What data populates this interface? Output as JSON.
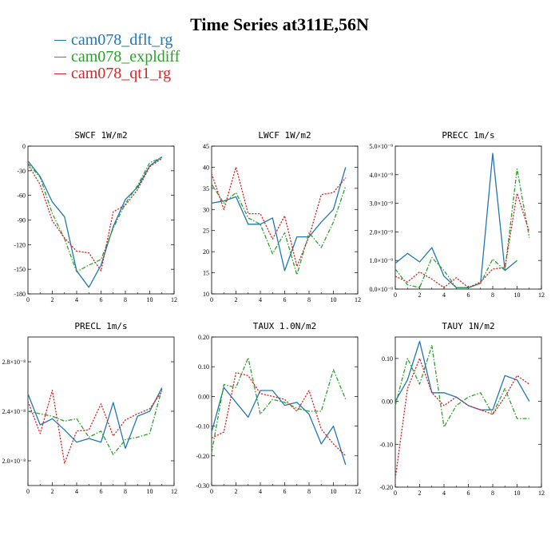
{
  "figure": {
    "title": "Time Series at311E,56N"
  },
  "legend": [
    {
      "name": "cam078_dflt_rg",
      "color": "#1f77b4",
      "dash": "solid"
    },
    {
      "name": "cam078_expldiff",
      "color": "#2ca02c",
      "dash": "dashdot"
    },
    {
      "name": "cam078_qt1_rg",
      "color": "#d62728",
      "dash": "dotted"
    }
  ],
  "chart_data": [
    {
      "type": "line",
      "title": "SWCF   1W/m2",
      "x": [
        0,
        1,
        2,
        3,
        4,
        5,
        6,
        7,
        8,
        9,
        10,
        11
      ],
      "xlim": [
        0,
        12
      ],
      "xticks": [
        0,
        2,
        4,
        6,
        8,
        10,
        12
      ],
      "xtick_labels": [
        "0",
        "2",
        "4",
        "6",
        "8",
        "10",
        "12"
      ],
      "ylim": [
        -180,
        0
      ],
      "yticks": [
        -180,
        -150,
        -120,
        -90,
        -60,
        -30,
        0
      ],
      "ytick_labels": [
        "-180",
        "-150",
        "-120",
        "-90",
        "-60",
        "-30",
        "0"
      ],
      "series": [
        {
          "name": "cam078_dflt_rg",
          "values": [
            -18,
            -37,
            -68,
            -86,
            -152,
            -172,
            -145,
            -98,
            -65,
            -50,
            -24,
            -13
          ]
        },
        {
          "name": "cam078_expldiff",
          "values": [
            -21,
            -38,
            -82,
            -113,
            -153,
            -145,
            -138,
            -100,
            -70,
            -48,
            -20,
            -14
          ]
        },
        {
          "name": "cam078_qt1_rg",
          "values": [
            -22,
            -47,
            -91,
            -112,
            -128,
            -130,
            -152,
            -80,
            -72,
            -53,
            -25,
            -15
          ]
        }
      ]
    },
    {
      "type": "line",
      "title": "LWCF   1W/m2",
      "x": [
        0,
        1,
        2,
        3,
        4,
        5,
        6,
        7,
        8,
        9,
        10,
        11
      ],
      "xlim": [
        0,
        12
      ],
      "xticks": [
        0,
        2,
        4,
        6,
        8,
        10,
        12
      ],
      "xtick_labels": [
        "0",
        "2",
        "4",
        "6",
        "8",
        "10",
        "12"
      ],
      "ylim": [
        10,
        45
      ],
      "yticks": [
        10,
        15,
        20,
        25,
        30,
        35,
        40,
        45
      ],
      "ytick_labels": [
        "10",
        "15",
        "20",
        "25",
        "30",
        "35",
        "40",
        "45"
      ],
      "series": [
        {
          "name": "cam078_dflt_rg",
          "values": [
            31.5,
            32,
            33,
            26.5,
            26.5,
            28,
            15.5,
            23.5,
            23.5,
            27,
            30,
            40
          ]
        },
        {
          "name": "cam078_expldiff",
          "values": [
            36,
            31.5,
            34,
            28,
            26.5,
            19.5,
            24.5,
            14.5,
            24.5,
            21,
            27,
            35.5
          ]
        },
        {
          "name": "cam078_qt1_rg",
          "values": [
            38.5,
            30,
            40,
            29,
            29,
            23,
            28.5,
            16.5,
            23.5,
            33.5,
            34,
            37.5
          ]
        }
      ]
    },
    {
      "type": "line",
      "title": "PRECC   1m/s",
      "x": [
        0,
        1,
        2,
        3,
        4,
        5,
        6,
        7,
        8,
        9,
        10,
        11
      ],
      "xlim": [
        0,
        12
      ],
      "xticks": [
        0,
        2,
        4,
        6,
        8,
        10,
        12
      ],
      "xtick_labels": [
        "0",
        "2",
        "4",
        "6",
        "8",
        "10",
        "12"
      ],
      "ylim": [
        0,
        5
      ],
      "yticks": [
        0,
        1,
        2,
        3,
        4,
        5
      ],
      "ytick_labels": [
        "0.0×10⁻⁹",
        "1.0×10⁻⁹",
        "2.0×10⁻⁹",
        "3.0×10⁻⁹",
        "4.0×10⁻⁹",
        "5.0×10⁻⁹"
      ],
      "series": [
        {
          "name": "cam078_dflt_rg",
          "values": [
            0.9,
            1.25,
            0.95,
            1.45,
            0.45,
            0.05,
            0.05,
            0.2,
            4.75,
            0.65,
            1.0,
            null
          ]
        },
        {
          "name": "cam078_expldiff",
          "values": [
            0.7,
            0.15,
            0.05,
            1.1,
            0.65,
            0.05,
            0.05,
            0.2,
            1.05,
            0.65,
            4.2,
            1.8
          ]
        },
        {
          "name": "cam078_qt1_rg",
          "values": [
            0.45,
            0.25,
            0.6,
            0.35,
            0.05,
            0.4,
            0.05,
            0.25,
            0.7,
            0.75,
            3.35,
            2.0
          ]
        }
      ]
    },
    {
      "type": "line",
      "title": "PRECL   1m/s",
      "x": [
        0,
        1,
        2,
        3,
        4,
        5,
        6,
        7,
        8,
        9,
        10,
        11
      ],
      "xlim": [
        0,
        12
      ],
      "xticks": [
        0,
        2,
        4,
        6,
        8,
        10,
        12
      ],
      "xtick_labels": [
        "0",
        "2",
        "4",
        "6",
        "8",
        "10",
        "12"
      ],
      "ylim": [
        1.8,
        3.0
      ],
      "yticks": [
        2.0,
        2.4,
        2.8
      ],
      "ytick_labels": [
        "2.0×10⁻⁸",
        "2.4×10⁻⁸",
        "2.8×10⁻⁸"
      ],
      "series": [
        {
          "name": "cam078_dflt_rg",
          "values": [
            2.54,
            2.29,
            2.34,
            2.25,
            2.15,
            2.18,
            2.15,
            2.47,
            2.1,
            2.36,
            2.4,
            2.59
          ]
        },
        {
          "name": "cam078_expldiff",
          "values": [
            2.4,
            2.38,
            2.36,
            2.32,
            2.34,
            2.19,
            2.24,
            2.05,
            2.17,
            2.19,
            2.22,
            2.58
          ]
        },
        {
          "name": "cam078_qt1_rg",
          "values": [
            2.48,
            2.22,
            2.57,
            1.98,
            2.24,
            2.25,
            2.46,
            2.2,
            2.33,
            2.38,
            2.42,
            2.56
          ]
        }
      ]
    },
    {
      "type": "line",
      "title": "TAUX   1.0N/m2",
      "x": [
        0,
        1,
        2,
        3,
        4,
        5,
        6,
        7,
        8,
        9,
        10,
        11
      ],
      "xlim": [
        0,
        12
      ],
      "xticks": [
        0,
        2,
        4,
        6,
        8,
        10,
        12
      ],
      "xtick_labels": [
        "0",
        "2",
        "4",
        "6",
        "8",
        "10",
        "12"
      ],
      "ylim": [
        -0.3,
        0.2
      ],
      "yticks": [
        -0.3,
        -0.2,
        -0.1,
        0.0,
        0.1,
        0.2
      ],
      "ytick_labels": [
        "-0.30",
        "-0.20",
        "-0.10",
        "0.00",
        "0.10",
        "0.20"
      ],
      "series": [
        {
          "name": "cam078_dflt_rg",
          "values": [
            -0.12,
            0.03,
            -0.02,
            -0.07,
            0.02,
            0.02,
            -0.03,
            -0.02,
            -0.06,
            -0.16,
            -0.1,
            -0.23
          ]
        },
        {
          "name": "cam078_expldiff",
          "values": [
            -0.19,
            0.04,
            0.03,
            0.13,
            -0.06,
            -0.01,
            -0.02,
            -0.04,
            -0.05,
            -0.05,
            0.09,
            -0.01
          ]
        },
        {
          "name": "cam078_qt1_rg",
          "values": [
            -0.14,
            -0.12,
            0.08,
            0.07,
            0.01,
            0.0,
            -0.01,
            -0.05,
            0.02,
            -0.11,
            -0.16,
            -0.2
          ]
        }
      ]
    },
    {
      "type": "line",
      "title": "TAUY   1N/m2",
      "x": [
        0,
        1,
        2,
        3,
        4,
        5,
        6,
        7,
        8,
        9,
        10,
        11
      ],
      "xlim": [
        0,
        12
      ],
      "xticks": [
        0,
        2,
        4,
        6,
        8,
        10,
        12
      ],
      "xtick_labels": [
        "0",
        "2",
        "4",
        "6",
        "8",
        "10",
        "12"
      ],
      "ylim": [
        -0.2,
        0.15
      ],
      "yticks": [
        -0.2,
        -0.1,
        0.0,
        0.1
      ],
      "ytick_labels": [
        "-0.20",
        "-0.10",
        "0.00",
        "0.10"
      ],
      "series": [
        {
          "name": "cam078_dflt_rg",
          "values": [
            0.0,
            0.05,
            0.14,
            0.02,
            0.02,
            0.01,
            -0.01,
            -0.02,
            -0.02,
            0.06,
            0.05,
            0.0
          ]
        },
        {
          "name": "cam078_expldiff",
          "values": [
            -0.01,
            0.1,
            0.04,
            0.13,
            -0.06,
            -0.01,
            0.01,
            0.02,
            -0.03,
            0.03,
            -0.04,
            -0.04
          ]
        },
        {
          "name": "cam078_qt1_rg",
          "values": [
            -0.18,
            0.03,
            0.1,
            0.02,
            -0.01,
            0.01,
            -0.01,
            -0.02,
            -0.03,
            0.01,
            0.06,
            0.04
          ]
        }
      ]
    }
  ]
}
